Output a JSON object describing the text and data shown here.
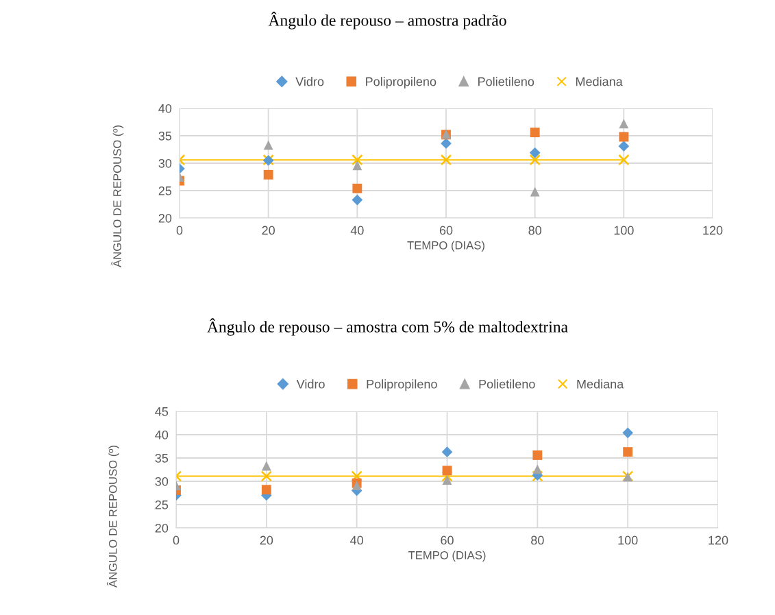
{
  "chart_data": [
    {
      "type": "scatter",
      "title": "Ângulo de repouso – amostra padrão",
      "xlabel": "TEMPO (DIAS)",
      "ylabel": "ÂNGULO DE REPOUSO (º)",
      "x": [
        0,
        20,
        40,
        60,
        80,
        100
      ],
      "series": [
        {
          "name": "Vidro",
          "color": "#5b9bd5",
          "marker": "diamond",
          "values": [
            29.0,
            30.5,
            23.3,
            33.6,
            31.9,
            33.1
          ]
        },
        {
          "name": "Polipropileno",
          "color": "#ed7d31",
          "marker": "square",
          "values": [
            26.8,
            27.9,
            25.4,
            35.2,
            35.6,
            34.8
          ]
        },
        {
          "name": "Polietileno",
          "color": "#a5a5a5",
          "marker": "triangle",
          "values": [
            27.5,
            33.3,
            29.6,
            35.3,
            24.8,
            37.2
          ]
        },
        {
          "name": "Mediana",
          "type": "line",
          "color": "#ffc000",
          "marker": "cross",
          "values": [
            30.6,
            30.6,
            30.6,
            30.6,
            30.6,
            30.6
          ]
        }
      ],
      "xlim": [
        0,
        120
      ],
      "xticks": [
        0,
        20,
        40,
        60,
        80,
        100,
        120
      ],
      "ylim": [
        20,
        40
      ],
      "yticks": [
        20,
        25,
        30,
        35,
        40
      ],
      "grid": true,
      "legend": "top"
    },
    {
      "type": "scatter",
      "title": "Ângulo de repouso – amostra com 5% de maltodextrina",
      "xlabel": "TEMPO (DIAS)",
      "ylabel": "ÂNGULO DE REPOUSO (º)",
      "x": [
        0,
        20,
        40,
        60,
        80,
        100
      ],
      "series": [
        {
          "name": "Vidro",
          "color": "#5b9bd5",
          "marker": "diamond",
          "values": [
            27.0,
            27.0,
            28.0,
            36.3,
            31.3,
            40.4
          ]
        },
        {
          "name": "Polipropileno",
          "color": "#ed7d31",
          "marker": "square",
          "values": [
            28.1,
            28.2,
            29.6,
            32.3,
            35.6,
            36.3
          ]
        },
        {
          "name": "Polietileno",
          "color": "#a5a5a5",
          "marker": "triangle",
          "values": [
            29.1,
            33.3,
            29.1,
            30.3,
            32.6,
            31.0
          ]
        },
        {
          "name": "Mediana",
          "type": "line",
          "color": "#ffc000",
          "marker": "cross",
          "values": [
            31.1,
            31.1,
            31.1,
            31.1,
            31.1,
            31.1
          ]
        }
      ],
      "xlim": [
        0,
        120
      ],
      "xticks": [
        0,
        20,
        40,
        60,
        80,
        100,
        120
      ],
      "ylim": [
        20,
        45
      ],
      "yticks": [
        20,
        25,
        30,
        35,
        40,
        45
      ],
      "grid": true,
      "legend": "top"
    }
  ]
}
